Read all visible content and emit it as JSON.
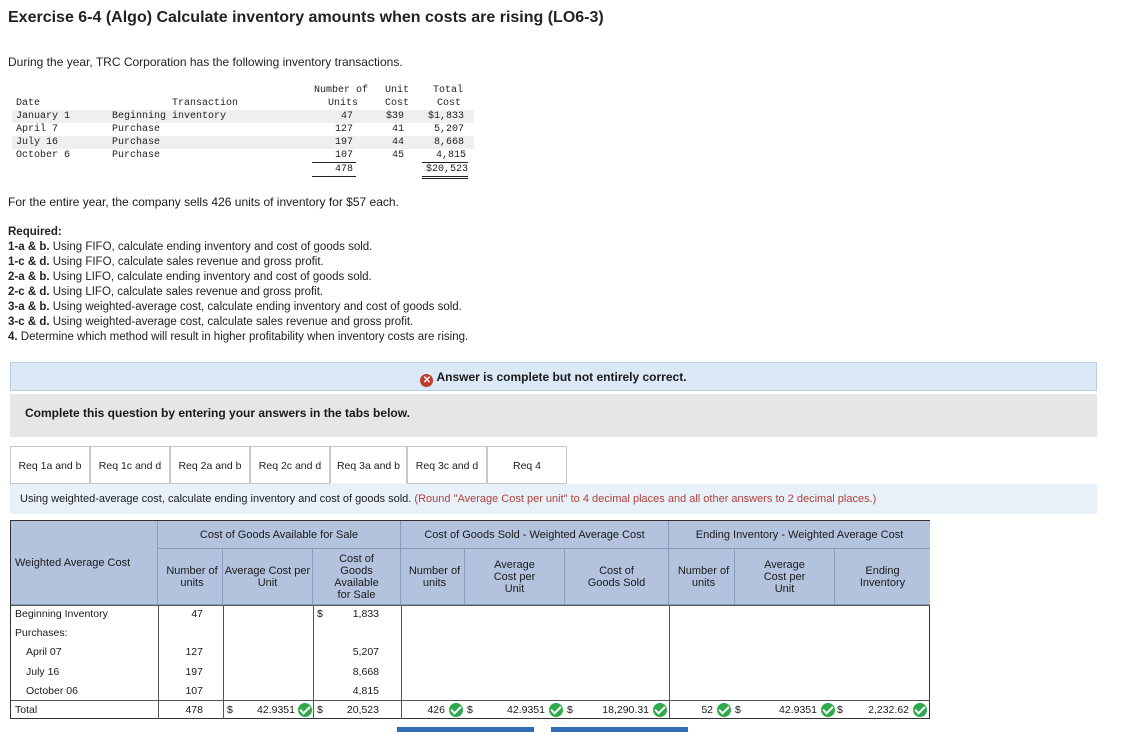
{
  "title": "Exercise 6-4 (Algo) Calculate inventory amounts when costs are rising (LO6-3)",
  "intro": "During the year, TRC Corporation has the following inventory transactions.",
  "inventory_table": {
    "headers": {
      "date": "Date",
      "transaction": "Transaction",
      "units_1": "Number of",
      "units_2": "Units",
      "cost_1": "Unit",
      "cost_2": "Cost",
      "total_1": "Total",
      "total_2": "Cost"
    },
    "rows": [
      {
        "date": "January 1",
        "transaction": "Beginning inventory",
        "units": "47",
        "cost": "$39",
        "total": "$1,833"
      },
      {
        "date": "April 7",
        "transaction": "Purchase",
        "units": "127",
        "cost": "41",
        "total": "5,207"
      },
      {
        "date": "July 16",
        "transaction": "Purchase",
        "units": "197",
        "cost": "44",
        "total": "8,668"
      },
      {
        "date": "October 6",
        "transaction": "Purchase",
        "units": "107",
        "cost": "45",
        "total": "4,815"
      }
    ],
    "total_units": "478",
    "total_cost": "$20,523"
  },
  "sells_text": "For the entire year, the company sells 426 units of inventory for $57 each.",
  "required": {
    "heading": "Required:",
    "items": [
      {
        "tag": "1-a & b.",
        "text": " Using FIFO, calculate ending inventory and cost of goods sold."
      },
      {
        "tag": "1-c & d.",
        "text": " Using FIFO, calculate sales revenue and gross profit."
      },
      {
        "tag": "2-a & b.",
        "text": " Using LIFO, calculate ending inventory and cost of goods sold."
      },
      {
        "tag": "2-c & d.",
        "text": " Using LIFO, calculate sales revenue and gross profit."
      },
      {
        "tag": "3-a & b.",
        "text": " Using weighted-average cost, calculate ending inventory and cost of goods sold."
      },
      {
        "tag": "3-c & d.",
        "text": " Using weighted-average cost, calculate sales revenue and gross profit."
      },
      {
        "tag": "4.",
        "text": " Determine which method will result in higher profitability when inventory costs are rising."
      }
    ]
  },
  "answer_status": "Answer is complete but not entirely correct.",
  "complete_prompt": "Complete this question by entering your answers in the tabs below.",
  "tabs": [
    "Req 1a and b",
    "Req 1c and d",
    "Req 2a and b",
    "Req 2c and d",
    "Req 3a and b",
    "Req 3c and d",
    "Req 4"
  ],
  "instruction": {
    "main": "Using weighted-average cost, calculate ending inventory and cost of goods sold.",
    "note": "(Round \"Average Cost per unit\" to 4 decimal places and all other answers to 2 decimal places.)"
  },
  "grid": {
    "header_groups": {
      "available": "Cost of Goods Available for Sale",
      "sold": "Cost of Goods Sold - Weighted Average Cost",
      "ending": "Ending Inventory - Weighted Average Cost"
    },
    "row_header": "Weighted Average Cost",
    "col_number_units": "Number of units",
    "col_avg_cost_unit": "Average Cost per Unit",
    "col_cost_available": "Cost of Goods Available for Sale",
    "col_avg_cost_per_unit": "Average Cost per Unit",
    "col_cogs": "Cost of Goods Sold",
    "col_ending": "Ending Inventory",
    "rows": {
      "beginning": {
        "label": "Beginning Inventory",
        "units": "47",
        "cost": "1,833"
      },
      "purchases": {
        "label": "Purchases:"
      },
      "april": {
        "label": "April 07",
        "units": "127",
        "cost": "5,207"
      },
      "july": {
        "label": "July 16",
        "units": "197",
        "cost": "8,668"
      },
      "october": {
        "label": "October 06",
        "units": "107",
        "cost": "4,815"
      },
      "total": {
        "label": "Total",
        "units": "478",
        "avg_cost": "42.9351",
        "cost": "20,523",
        "sold_units": "426",
        "sold_avg": "42.9351",
        "cogs": "18,290.31",
        "end_units": "52",
        "end_avg": "42.9351",
        "ending": "2,232.62"
      }
    },
    "currency": "$"
  }
}
